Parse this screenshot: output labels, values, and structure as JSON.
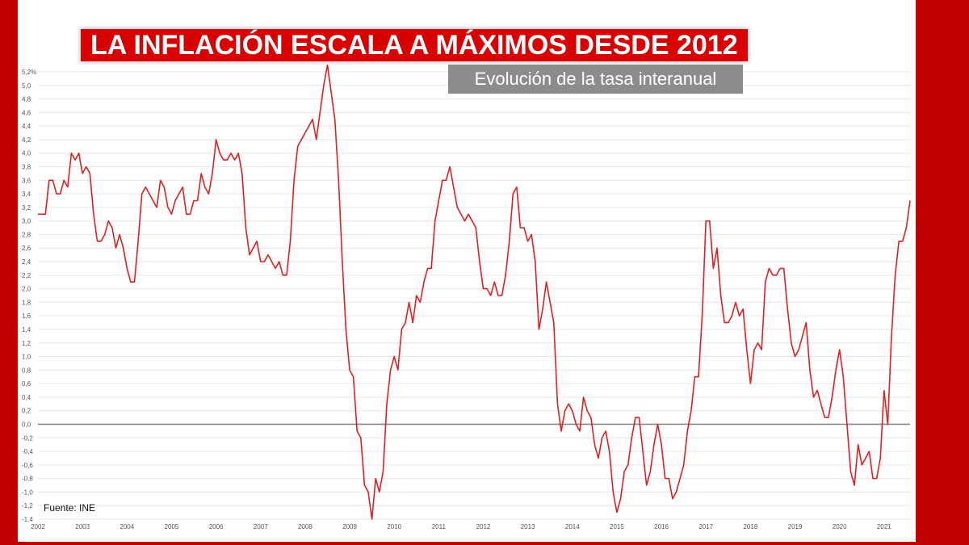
{
  "header": {
    "title": "LA INFLACIÓN ESCALA A MÁXIMOS DESDE 2012",
    "subtitle": "Evolución de la tasa interanual"
  },
  "footer": {
    "source": "Fuente: INE"
  },
  "colors": {
    "frame": "#c00000",
    "title_bg": "#d90000",
    "subtitle_bg": "#8c8c8c",
    "line": "#e02020",
    "zero_line": "#888888",
    "grid": "#e6e6e6"
  },
  "chart_data": {
    "type": "line",
    "title": "LA INFLACIÓN ESCALA A MÁXIMOS DESDE 2012",
    "subtitle": "Evolución de la tasa interanual",
    "xlabel": "",
    "ylabel": "",
    "ylim": [
      -1.4,
      5.2
    ],
    "xlim": [
      "2002-01",
      "2021-08"
    ],
    "grid": true,
    "legend": "none",
    "y_ticks": [
      "5,2%",
      "5,0",
      "4,8",
      "4,6",
      "4,4",
      "4,2",
      "4,0",
      "3,8",
      "3,6",
      "3,4",
      "3,2",
      "3,0",
      "2,8",
      "2,6",
      "2,4",
      "2,2",
      "2,0",
      "1,8",
      "1,6",
      "1,4",
      "1,2",
      "1,0",
      "0,8",
      "0,6",
      "0,4",
      "0,2",
      "0,0",
      "-0,2",
      "-0,4",
      "-0,6",
      "-0,8",
      "-1,0",
      "-1,2",
      "-1,4"
    ],
    "x_ticks": [
      "2002",
      "2003",
      "2004",
      "2005",
      "2006",
      "2007",
      "2008",
      "2009",
      "2010",
      "2011",
      "2012",
      "2013",
      "2014",
      "2015",
      "2016",
      "2017",
      "2018",
      "2019",
      "2020",
      "2021"
    ],
    "series": [
      {
        "values": [
          [
            "2002-01",
            3.1
          ],
          [
            "2002-03",
            3.1
          ],
          [
            "2002-04",
            3.6
          ],
          [
            "2002-05",
            3.6
          ],
          [
            "2002-06",
            3.4
          ],
          [
            "2002-07",
            3.4
          ],
          [
            "2002-08",
            3.6
          ],
          [
            "2002-09",
            3.5
          ],
          [
            "2002-10",
            4.0
          ],
          [
            "2002-11",
            3.9
          ],
          [
            "2002-12",
            4.0
          ],
          [
            "2003-01",
            3.7
          ],
          [
            "2003-02",
            3.8
          ],
          [
            "2003-03",
            3.7
          ],
          [
            "2003-04",
            3.1
          ],
          [
            "2003-05",
            2.7
          ],
          [
            "2003-06",
            2.7
          ],
          [
            "2003-07",
            2.8
          ],
          [
            "2003-08",
            3.0
          ],
          [
            "2003-09",
            2.9
          ],
          [
            "2003-10",
            2.6
          ],
          [
            "2003-11",
            2.8
          ],
          [
            "2003-12",
            2.6
          ],
          [
            "2004-01",
            2.3
          ],
          [
            "2004-02",
            2.1
          ],
          [
            "2004-03",
            2.1
          ],
          [
            "2004-04",
            2.7
          ],
          [
            "2004-05",
            3.4
          ],
          [
            "2004-06",
            3.5
          ],
          [
            "2004-07",
            3.4
          ],
          [
            "2004-08",
            3.3
          ],
          [
            "2004-09",
            3.2
          ],
          [
            "2004-10",
            3.6
          ],
          [
            "2004-11",
            3.5
          ],
          [
            "2004-12",
            3.2
          ],
          [
            "2005-01",
            3.1
          ],
          [
            "2005-02",
            3.3
          ],
          [
            "2005-03",
            3.4
          ],
          [
            "2005-04",
            3.5
          ],
          [
            "2005-05",
            3.1
          ],
          [
            "2005-06",
            3.1
          ],
          [
            "2005-07",
            3.3
          ],
          [
            "2005-08",
            3.3
          ],
          [
            "2005-09",
            3.7
          ],
          [
            "2005-10",
            3.5
          ],
          [
            "2005-11",
            3.4
          ],
          [
            "2005-12",
            3.7
          ],
          [
            "2006-01",
            4.2
          ],
          [
            "2006-02",
            4.0
          ],
          [
            "2006-03",
            3.9
          ],
          [
            "2006-04",
            3.9
          ],
          [
            "2006-05",
            4.0
          ],
          [
            "2006-06",
            3.9
          ],
          [
            "2006-07",
            4.0
          ],
          [
            "2006-08",
            3.7
          ],
          [
            "2006-09",
            2.9
          ],
          [
            "2006-10",
            2.5
          ],
          [
            "2006-11",
            2.6
          ],
          [
            "2006-12",
            2.7
          ],
          [
            "2007-01",
            2.4
          ],
          [
            "2007-02",
            2.4
          ],
          [
            "2007-03",
            2.5
          ],
          [
            "2007-04",
            2.4
          ],
          [
            "2007-05",
            2.3
          ],
          [
            "2007-06",
            2.4
          ],
          [
            "2007-07",
            2.2
          ],
          [
            "2007-08",
            2.2
          ],
          [
            "2007-09",
            2.7
          ],
          [
            "2007-10",
            3.6
          ],
          [
            "2007-11",
            4.1
          ],
          [
            "2007-12",
            4.2
          ],
          [
            "2008-01",
            4.3
          ],
          [
            "2008-02",
            4.4
          ],
          [
            "2008-03",
            4.5
          ],
          [
            "2008-04",
            4.2
          ],
          [
            "2008-05",
            4.6
          ],
          [
            "2008-06",
            5.0
          ],
          [
            "2008-07",
            5.3
          ],
          [
            "2008-08",
            4.9
          ],
          [
            "2008-09",
            4.5
          ],
          [
            "2008-10",
            3.6
          ],
          [
            "2008-11",
            2.4
          ],
          [
            "2008-12",
            1.4
          ],
          [
            "2009-01",
            0.8
          ],
          [
            "2009-02",
            0.7
          ],
          [
            "2009-03",
            -0.1
          ],
          [
            "2009-04",
            -0.2
          ],
          [
            "2009-05",
            -0.9
          ],
          [
            "2009-06",
            -1.0
          ],
          [
            "2009-07",
            -1.4
          ],
          [
            "2009-08",
            -0.8
          ],
          [
            "2009-09",
            -1.0
          ],
          [
            "2009-10",
            -0.7
          ],
          [
            "2009-11",
            0.3
          ],
          [
            "2009-12",
            0.8
          ],
          [
            "2010-01",
            1.0
          ],
          [
            "2010-02",
            0.8
          ],
          [
            "2010-03",
            1.4
          ],
          [
            "2010-04",
            1.5
          ],
          [
            "2010-05",
            1.8
          ],
          [
            "2010-06",
            1.5
          ],
          [
            "2010-07",
            1.9
          ],
          [
            "2010-08",
            1.8
          ],
          [
            "2010-09",
            2.1
          ],
          [
            "2010-10",
            2.3
          ],
          [
            "2010-11",
            2.3
          ],
          [
            "2010-12",
            3.0
          ],
          [
            "2011-01",
            3.3
          ],
          [
            "2011-02",
            3.6
          ],
          [
            "2011-03",
            3.6
          ],
          [
            "2011-04",
            3.8
          ],
          [
            "2011-05",
            3.5
          ],
          [
            "2011-06",
            3.2
          ],
          [
            "2011-07",
            3.1
          ],
          [
            "2011-08",
            3.0
          ],
          [
            "2011-09",
            3.1
          ],
          [
            "2011-10",
            3.0
          ],
          [
            "2011-11",
            2.9
          ],
          [
            "2011-12",
            2.4
          ],
          [
            "2012-01",
            2.0
          ],
          [
            "2012-02",
            2.0
          ],
          [
            "2012-03",
            1.9
          ],
          [
            "2012-04",
            2.1
          ],
          [
            "2012-05",
            1.9
          ],
          [
            "2012-06",
            1.9
          ],
          [
            "2012-07",
            2.2
          ],
          [
            "2012-08",
            2.7
          ],
          [
            "2012-09",
            3.4
          ],
          [
            "2012-10",
            3.5
          ],
          [
            "2012-11",
            2.9
          ],
          [
            "2012-12",
            2.9
          ],
          [
            "2013-01",
            2.7
          ],
          [
            "2013-02",
            2.8
          ],
          [
            "2013-03",
            2.4
          ],
          [
            "2013-04",
            1.4
          ],
          [
            "2013-05",
            1.7
          ],
          [
            "2013-06",
            2.1
          ],
          [
            "2013-07",
            1.8
          ],
          [
            "2013-08",
            1.5
          ],
          [
            "2013-09",
            0.3
          ],
          [
            "2013-10",
            -0.1
          ],
          [
            "2013-11",
            0.2
          ],
          [
            "2013-12",
            0.3
          ],
          [
            "2014-01",
            0.2
          ],
          [
            "2014-02",
            0.0
          ],
          [
            "2014-03",
            -0.1
          ],
          [
            "2014-04",
            0.4
          ],
          [
            "2014-05",
            0.2
          ],
          [
            "2014-06",
            0.1
          ],
          [
            "2014-07",
            -0.3
          ],
          [
            "2014-08",
            -0.5
          ],
          [
            "2014-09",
            -0.2
          ],
          [
            "2014-10",
            -0.1
          ],
          [
            "2014-11",
            -0.4
          ],
          [
            "2014-12",
            -1.0
          ],
          [
            "2015-01",
            -1.3
          ],
          [
            "2015-02",
            -1.1
          ],
          [
            "2015-03",
            -0.7
          ],
          [
            "2015-04",
            -0.6
          ],
          [
            "2015-05",
            -0.2
          ],
          [
            "2015-06",
            0.1
          ],
          [
            "2015-07",
            0.1
          ],
          [
            "2015-08",
            -0.4
          ],
          [
            "2015-09",
            -0.9
          ],
          [
            "2015-10",
            -0.7
          ],
          [
            "2015-11",
            -0.3
          ],
          [
            "2015-12",
            0.0
          ],
          [
            "2016-01",
            -0.3
          ],
          [
            "2016-02",
            -0.8
          ],
          [
            "2016-03",
            -0.8
          ],
          [
            "2016-04",
            -1.1
          ],
          [
            "2016-05",
            -1.0
          ],
          [
            "2016-06",
            -0.8
          ],
          [
            "2016-07",
            -0.6
          ],
          [
            "2016-08",
            -0.1
          ],
          [
            "2016-09",
            0.2
          ],
          [
            "2016-10",
            0.7
          ],
          [
            "2016-11",
            0.7
          ],
          [
            "2016-12",
            1.6
          ],
          [
            "2017-01",
            3.0
          ],
          [
            "2017-02",
            3.0
          ],
          [
            "2017-03",
            2.3
          ],
          [
            "2017-04",
            2.6
          ],
          [
            "2017-05",
            1.9
          ],
          [
            "2017-06",
            1.5
          ],
          [
            "2017-07",
            1.5
          ],
          [
            "2017-08",
            1.6
          ],
          [
            "2017-09",
            1.8
          ],
          [
            "2017-10",
            1.6
          ],
          [
            "2017-11",
            1.7
          ],
          [
            "2017-12",
            1.1
          ],
          [
            "2018-01",
            0.6
          ],
          [
            "2018-02",
            1.1
          ],
          [
            "2018-03",
            1.2
          ],
          [
            "2018-04",
            1.1
          ],
          [
            "2018-05",
            2.1
          ],
          [
            "2018-06",
            2.3
          ],
          [
            "2018-07",
            2.2
          ],
          [
            "2018-08",
            2.2
          ],
          [
            "2018-09",
            2.3
          ],
          [
            "2018-10",
            2.3
          ],
          [
            "2018-11",
            1.7
          ],
          [
            "2018-12",
            1.2
          ],
          [
            "2019-01",
            1.0
          ],
          [
            "2019-02",
            1.1
          ],
          [
            "2019-03",
            1.3
          ],
          [
            "2019-04",
            1.5
          ],
          [
            "2019-05",
            0.8
          ],
          [
            "2019-06",
            0.4
          ],
          [
            "2019-07",
            0.5
          ],
          [
            "2019-08",
            0.3
          ],
          [
            "2019-09",
            0.1
          ],
          [
            "2019-10",
            0.1
          ],
          [
            "2019-11",
            0.4
          ],
          [
            "2019-12",
            0.8
          ],
          [
            "2020-01",
            1.1
          ],
          [
            "2020-02",
            0.7
          ],
          [
            "2020-03",
            0.0
          ],
          [
            "2020-04",
            -0.7
          ],
          [
            "2020-05",
            -0.9
          ],
          [
            "2020-06",
            -0.3
          ],
          [
            "2020-07",
            -0.6
          ],
          [
            "2020-08",
            -0.5
          ],
          [
            "2020-09",
            -0.4
          ],
          [
            "2020-10",
            -0.8
          ],
          [
            "2020-11",
            -0.8
          ],
          [
            "2020-12",
            -0.5
          ],
          [
            "2021-01",
            0.5
          ],
          [
            "2021-02",
            0.0
          ],
          [
            "2021-03",
            1.3
          ],
          [
            "2021-04",
            2.2
          ],
          [
            "2021-05",
            2.7
          ],
          [
            "2021-06",
            2.7
          ],
          [
            "2021-07",
            2.9
          ],
          [
            "2021-08",
            3.3
          ]
        ]
      }
    ]
  }
}
